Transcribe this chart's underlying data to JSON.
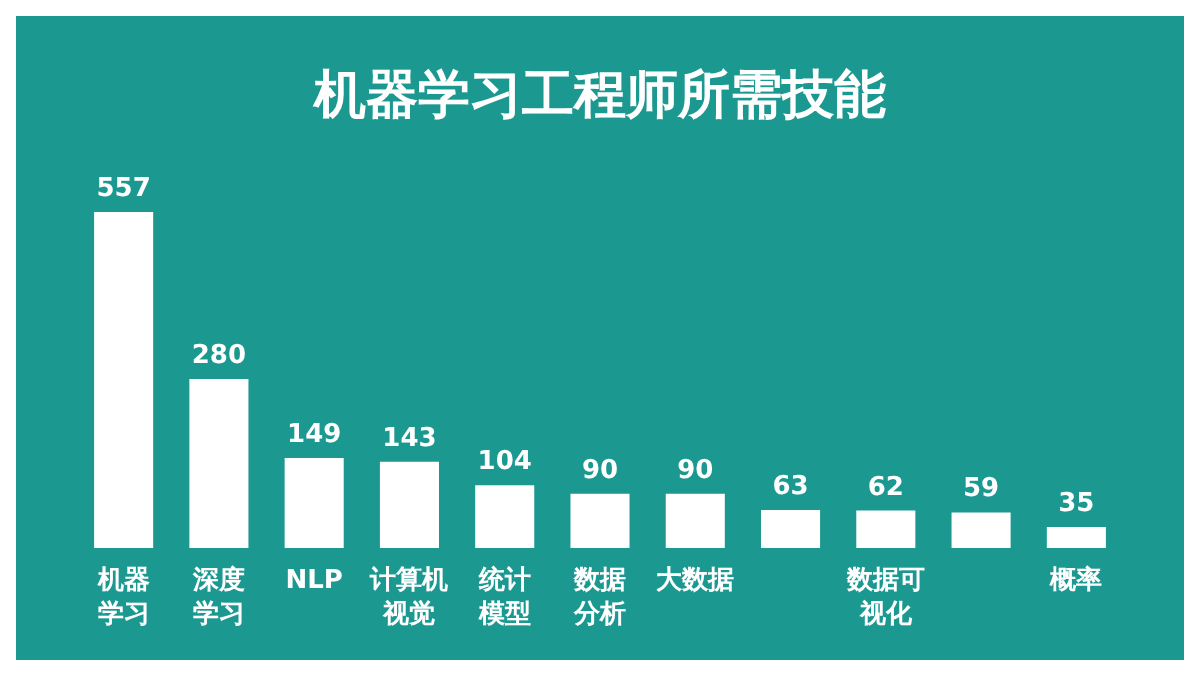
{
  "chart_data": {
    "type": "bar",
    "title": "机器学习工程师所需技能",
    "categories": [
      "机器学习",
      "深度学习",
      "NLP",
      "计算机视觉",
      "统计模型",
      "数据分析",
      "大数据",
      null,
      "数据可视化",
      null,
      "概率"
    ],
    "values": [
      557,
      280,
      149,
      143,
      104,
      90,
      90,
      63,
      62,
      59,
      35
    ],
    "color": "#ffffff",
    "data_labels": true
  }
}
